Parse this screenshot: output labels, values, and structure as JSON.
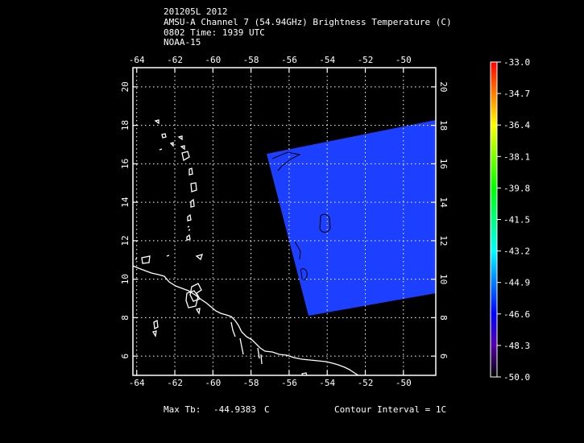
{
  "header": {
    "line1": "201205L 2012",
    "line2": "AMSU-A Channel 7 (54.94GHz) Brightness Temperature (C)",
    "line3": "0802 Time: 1939 UTC",
    "line4": "NOAA-15"
  },
  "footer": {
    "max_tb_label": "Max Tb:",
    "max_tb_value": "-44.9383",
    "max_tb_unit": "C",
    "contour_interval": "Contour Interval = 1C"
  },
  "map": {
    "lon_ticks": [
      "-64",
      "-62",
      "-60",
      "-58",
      "-56",
      "-54",
      "-52",
      "-50"
    ],
    "lat_ticks": [
      "6",
      "8",
      "10",
      "12",
      "14",
      "16",
      "18",
      "20"
    ],
    "lon_range": [
      -64.2,
      -48.3
    ],
    "lat_range": [
      5.0,
      21.0
    ],
    "grid": true,
    "swath_color": "#1d3fff",
    "coast_color": "#ffffff",
    "contour_color": "#000000"
  },
  "colorbar": {
    "labels": [
      "-33.0",
      "-34.7",
      "-36.4",
      "-38.1",
      "-39.8",
      "-41.5",
      "-43.2",
      "-44.9",
      "-46.6",
      "-48.3",
      "-50.0"
    ],
    "colors": [
      "#ff0000",
      "#ff7f00",
      "#ffff00",
      "#7fff00",
      "#00ff00",
      "#00ff7f",
      "#00ffff",
      "#007fff",
      "#0000ff",
      "#5500aa",
      "#000000"
    ]
  }
}
